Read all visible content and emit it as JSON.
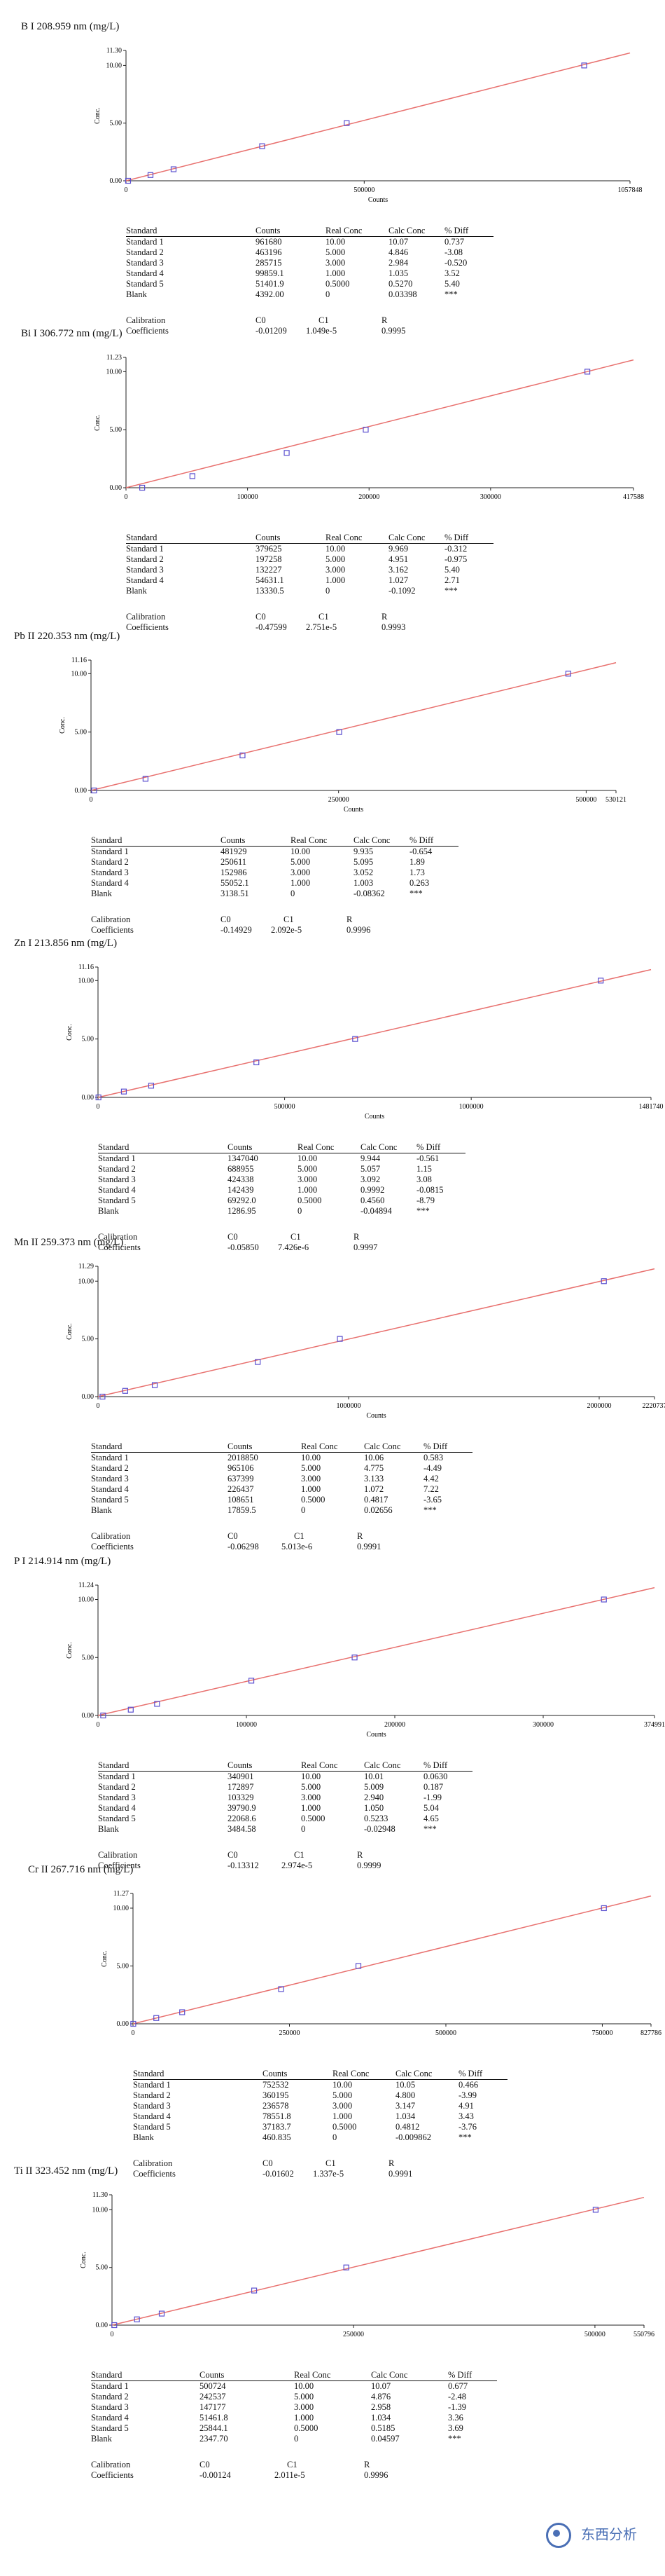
{
  "panels": [
    {
      "title": "B I 208.959 nm (mg/L)",
      "chart_data": {
        "type": "scatter",
        "xlabel": "Counts",
        "ylabel": "Conc.",
        "xlim": [
          0,
          1057848
        ],
        "ylim": [
          0,
          11.3
        ],
        "x_ticks": [
          "0",
          "500000",
          "1057848"
        ],
        "y_ticks": [
          "0.00",
          "5.00",
          "10.00",
          "11.30"
        ],
        "points": [
          [
            961680,
            10.0
          ],
          [
            463196,
            5.0
          ],
          [
            285715,
            3.0
          ],
          [
            99859.1,
            1.0
          ],
          [
            51401.9,
            0.5
          ],
          [
            4392.0,
            0
          ]
        ],
        "line": {
          "c0": -0.01209,
          "c1": 1.049e-05
        }
      },
      "table": {
        "headers": [
          "Standard",
          "Counts",
          "Real Conc",
          "Calc Conc",
          "% Diff"
        ],
        "rows": [
          [
            "Standard 1",
            "961680",
            "10.00",
            "10.07",
            "0.737"
          ],
          [
            "Standard 2",
            "463196",
            "5.000",
            "4.846",
            "-3.08"
          ],
          [
            "Standard 3",
            "285715",
            "3.000",
            "2.984",
            "-0.520"
          ],
          [
            "Standard 4",
            "99859.1",
            "1.000",
            "1.035",
            "3.52"
          ],
          [
            "Standard 5",
            "51401.9",
            "0.5000",
            "0.5270",
            "5.40"
          ],
          [
            "Blank",
            "4392.00",
            "0",
            "0.03398",
            "***"
          ]
        ]
      },
      "calibration": {
        "label1": "Calibration",
        "label2": "Coefficients",
        "h0": "C0",
        "h1": "C1",
        "h2": "R",
        "c0": "-0.01209",
        "c1": "1.049e-5",
        "r": "0.9995"
      }
    },
    {
      "title": "Bi I 306.772 nm (mg/L)",
      "chart_data": {
        "type": "scatter",
        "xlabel": "",
        "ylabel": "Conc.",
        "xlim": [
          0,
          417588
        ],
        "ylim": [
          0,
          11.23
        ],
        "x_ticks": [
          "0",
          "100000",
          "200000",
          "300000",
          "417588"
        ],
        "y_ticks": [
          "0.00",
          "5.00",
          "10.00",
          "11.23"
        ],
        "points": [
          [
            379625,
            10.0
          ],
          [
            197258,
            5.0
          ],
          [
            132227,
            3.0
          ],
          [
            54631.1,
            1.0
          ],
          [
            13330.5,
            0
          ]
        ],
        "line": {
          "c0": -0.47599,
          "c1": 2.751e-05
        }
      },
      "table": {
        "headers": [
          "Standard",
          "Counts",
          "Real Conc",
          "Calc Conc",
          "% Diff"
        ],
        "rows": [
          [
            "Standard 1",
            "379625",
            "10.00",
            "9.969",
            "-0.312"
          ],
          [
            "Standard 2",
            "197258",
            "5.000",
            "4.951",
            "-0.975"
          ],
          [
            "Standard 3",
            "132227",
            "3.000",
            "3.162",
            "5.40"
          ],
          [
            "Standard 4",
            "54631.1",
            "1.000",
            "1.027",
            "2.71"
          ],
          [
            "Blank",
            "13330.5",
            "0",
            "-0.1092",
            "***"
          ]
        ]
      },
      "calibration": {
        "label1": "Calibration",
        "label2": "Coefficients",
        "h0": "C0",
        "h1": "C1",
        "h2": "R",
        "c0": "-0.47599",
        "c1": "2.751e-5",
        "r": "0.9993"
      }
    },
    {
      "title": "Pb II 220.353 nm (mg/L)",
      "chart_data": {
        "type": "scatter",
        "xlabel": "Counts",
        "ylabel": "Conc.",
        "xlim": [
          0,
          530121
        ],
        "ylim": [
          0,
          11.16
        ],
        "x_ticks": [
          "0",
          "250000",
          "500000",
          "530121"
        ],
        "y_ticks": [
          "0.00",
          "5.00",
          "10.00",
          "11.16"
        ],
        "points": [
          [
            481929,
            10.0
          ],
          [
            250611,
            5.0
          ],
          [
            152986,
            3.0
          ],
          [
            55052.1,
            1.0
          ],
          [
            3138.51,
            0
          ]
        ],
        "line": {
          "c0": -0.14929,
          "c1": 2.092e-05
        }
      },
      "table": {
        "headers": [
          "Standard",
          "Counts",
          "Real Conc",
          "Calc Conc",
          "% Diff"
        ],
        "rows": [
          [
            "Standard 1",
            "481929",
            "10.00",
            "9.935",
            "-0.654"
          ],
          [
            "Standard 2",
            "250611",
            "5.000",
            "5.095",
            "1.89"
          ],
          [
            "Standard 3",
            "152986",
            "3.000",
            "3.052",
            "1.73"
          ],
          [
            "Standard 4",
            "55052.1",
            "1.000",
            "1.003",
            "0.263"
          ],
          [
            "Blank",
            "3138.51",
            "0",
            "-0.08362",
            "***"
          ]
        ]
      },
      "calibration": {
        "label1": "Calibration",
        "label2": "Coefficients",
        "h0": "C0",
        "h1": "C1",
        "h2": "R",
        "c0": "-0.14929",
        "c1": "2.092e-5",
        "r": "0.9996"
      }
    },
    {
      "title": "Zn I 213.856 nm (mg/L)",
      "chart_data": {
        "type": "scatter",
        "xlabel": "Counts",
        "ylabel": "Conc.",
        "xlim": [
          0,
          1481740
        ],
        "ylim": [
          0,
          11.16
        ],
        "x_ticks": [
          "0",
          "500000",
          "1000000",
          "1481740"
        ],
        "y_ticks": [
          "0.00",
          "5.00",
          "10.00",
          "11.16"
        ],
        "points": [
          [
            1347040,
            10.0
          ],
          [
            688955,
            5.0
          ],
          [
            424338,
            3.0
          ],
          [
            142439,
            1.0
          ],
          [
            69292.0,
            0.5
          ],
          [
            1286.95,
            0
          ]
        ],
        "line": {
          "c0": -0.0585,
          "c1": 7.426e-06
        }
      },
      "table": {
        "headers": [
          "Standard",
          "Counts",
          "Real Conc",
          "Calc Conc",
          "% Diff"
        ],
        "rows": [
          [
            "Standard 1",
            "1347040",
            "10.00",
            "9.944",
            "-0.561"
          ],
          [
            "Standard 2",
            "688955",
            "5.000",
            "5.057",
            "1.15"
          ],
          [
            "Standard 3",
            "424338",
            "3.000",
            "3.092",
            "3.08"
          ],
          [
            "Standard 4",
            "142439",
            "1.000",
            "0.9992",
            "-0.0815"
          ],
          [
            "Standard 5",
            "69292.0",
            "0.5000",
            "0.4560",
            "-8.79"
          ],
          [
            "Blank",
            "1286.95",
            "0",
            "-0.04894",
            "***"
          ]
        ]
      },
      "calibration": {
        "label1": "Calibration",
        "label2": "Coefficients",
        "h0": "C0",
        "h1": "C1",
        "h2": "R",
        "c0": "-0.05850",
        "c1": "7.426e-6",
        "r": "0.9997"
      }
    },
    {
      "title": "Mn II 259.373 nm (mg/L)",
      "chart_data": {
        "type": "scatter",
        "xlabel": "Counts",
        "ylabel": "Conc.",
        "xlim": [
          0,
          2220737
        ],
        "ylim": [
          0,
          11.29
        ],
        "x_ticks": [
          "0",
          "1000000",
          "2000000",
          "2220737"
        ],
        "y_ticks": [
          "0.00",
          "5.00",
          "10.00",
          "11.29"
        ],
        "points": [
          [
            2018850,
            10.0
          ],
          [
            965106,
            5.0
          ],
          [
            637399,
            3.0
          ],
          [
            226437,
            1.0
          ],
          [
            108651,
            0.5
          ],
          [
            17859.5,
            0
          ]
        ],
        "line": {
          "c0": -0.06298,
          "c1": 5.013e-06
        }
      },
      "table": {
        "headers": [
          "Standard",
          "Counts",
          "Real Conc",
          "Calc Conc",
          "% Diff"
        ],
        "rows": [
          [
            "Standard 1",
            "2018850",
            "10.00",
            "10.06",
            "0.583"
          ],
          [
            "Standard 2",
            "965106",
            "5.000",
            "4.775",
            "-4.49"
          ],
          [
            "Standard 3",
            "637399",
            "3.000",
            "3.133",
            "4.42"
          ],
          [
            "Standard 4",
            "226437",
            "1.000",
            "1.072",
            "7.22"
          ],
          [
            "Standard 5",
            "108651",
            "0.5000",
            "0.4817",
            "-3.65"
          ],
          [
            "Blank",
            "17859.5",
            "0",
            "0.02656",
            "***"
          ]
        ]
      },
      "calibration": {
        "label1": "Calibration",
        "label2": "Coefficients",
        "h0": "C0",
        "h1": "C1",
        "h2": "R",
        "c0": "-0.06298",
        "c1": "5.013e-6",
        "r": "0.9991"
      }
    },
    {
      "title": "P I 214.914 nm (mg/L)",
      "chart_data": {
        "type": "scatter",
        "xlabel": "Counts",
        "ylabel": "Conc.",
        "xlim": [
          0,
          374991
        ],
        "ylim": [
          0,
          11.24
        ],
        "x_ticks": [
          "0",
          "100000",
          "200000",
          "300000",
          "374991"
        ],
        "y_ticks": [
          "0.00",
          "5.00",
          "10.00",
          "11.24"
        ],
        "points": [
          [
            340901,
            10.0
          ],
          [
            172897,
            5.0
          ],
          [
            103329,
            3.0
          ],
          [
            39790.9,
            1.0
          ],
          [
            22068.6,
            0.5
          ],
          [
            3484.58,
            0
          ]
        ],
        "line": {
          "c0": -0.13312,
          "c1": 2.974e-05
        }
      },
      "table": {
        "headers": [
          "Standard",
          "Counts",
          "Real Conc",
          "Calc Conc",
          "% Diff"
        ],
        "rows": [
          [
            "Standard 1",
            "340901",
            "10.00",
            "10.01",
            "0.0630"
          ],
          [
            "Standard 2",
            "172897",
            "5.000",
            "5.009",
            "0.187"
          ],
          [
            "Standard 3",
            "103329",
            "3.000",
            "2.940",
            "-1.99"
          ],
          [
            "Standard 4",
            "39790.9",
            "1.000",
            "1.050",
            "5.04"
          ],
          [
            "Standard 5",
            "22068.6",
            "0.5000",
            "0.5233",
            "4.65"
          ],
          [
            "Blank",
            "3484.58",
            "0",
            "-0.02948",
            "***"
          ]
        ]
      },
      "calibration": {
        "label1": "Calibration",
        "label2": "Coefficients",
        "h0": "C0",
        "h1": "C1",
        "h2": "R",
        "c0": "-0.13312",
        "c1": "2.974e-5",
        "r": "0.9999"
      }
    },
    {
      "title": "Cr II 267.716 nm (mg/L)",
      "chart_data": {
        "type": "scatter",
        "xlabel": "",
        "ylabel": "Conc.",
        "xlim": [
          0,
          827786
        ],
        "ylim": [
          0,
          11.27
        ],
        "x_ticks": [
          "0",
          "250000",
          "500000",
          "750000",
          "827786"
        ],
        "y_ticks": [
          "0.00",
          "5.00",
          "10.00",
          "11.27"
        ],
        "points": [
          [
            752532,
            10.0
          ],
          [
            360195,
            5.0
          ],
          [
            236578,
            3.0
          ],
          [
            78551.8,
            1.0
          ],
          [
            37183.7,
            0.5
          ],
          [
            460.835,
            0
          ]
        ],
        "line": {
          "c0": -0.01602,
          "c1": 1.337e-05
        }
      },
      "table": {
        "headers": [
          "Standard",
          "Counts",
          "Real Conc",
          "Calc Conc",
          "% Diff"
        ],
        "rows": [
          [
            "Standard 1",
            "752532",
            "10.00",
            "10.05",
            "0.466"
          ],
          [
            "Standard 2",
            "360195",
            "5.000",
            "4.800",
            "-3.99"
          ],
          [
            "Standard 3",
            "236578",
            "3.000",
            "3.147",
            "4.91"
          ],
          [
            "Standard 4",
            "78551.8",
            "1.000",
            "1.034",
            "3.43"
          ],
          [
            "Standard 5",
            "37183.7",
            "0.5000",
            "0.4812",
            "-3.76"
          ],
          [
            "Blank",
            "460.835",
            "0",
            "-0.009862",
            "***"
          ]
        ]
      },
      "calibration": {
        "label1": "Calibration",
        "label2": "Coefficients",
        "h0": "C0",
        "h1": "C1",
        "h2": "R",
        "c0": "-0.01602",
        "c1": "1.337e-5",
        "r": "0.9991"
      }
    },
    {
      "title": "Ti II 323.452 nm (mg/L)",
      "chart_data": {
        "type": "scatter",
        "xlabel": "",
        "ylabel": "Conc.",
        "xlim": [
          0,
          550796
        ],
        "ylim": [
          0,
          11.3
        ],
        "x_ticks": [
          "0",
          "250000",
          "500000",
          "550796"
        ],
        "y_ticks": [
          "0.00",
          "5.00",
          "10.00",
          "11.30"
        ],
        "points": [
          [
            500724,
            10.0
          ],
          [
            242537,
            5.0
          ],
          [
            147177,
            3.0
          ],
          [
            51461.8,
            1.0
          ],
          [
            25844.1,
            0.5
          ],
          [
            2347.7,
            0
          ]
        ],
        "line": {
          "c0": -0.00124,
          "c1": 2.011e-05
        }
      },
      "table": {
        "headers": [
          "Standard",
          "Counts",
          "Real Conc",
          "Calc Conc",
          "% Diff"
        ],
        "rows": [
          [
            "Standard 1",
            "500724",
            "10.00",
            "10.07",
            "0.677"
          ],
          [
            "Standard 2",
            "242537",
            "5.000",
            "4.876",
            "-2.48"
          ],
          [
            "Standard 3",
            "147177",
            "3.000",
            "2.958",
            "-1.39"
          ],
          [
            "Standard 4",
            "51461.8",
            "1.000",
            "1.034",
            "3.36"
          ],
          [
            "Standard 5",
            "25844.1",
            "0.5000",
            "0.5185",
            "3.69"
          ],
          [
            "Blank",
            "2347.70",
            "0",
            "0.04597",
            "***"
          ]
        ]
      },
      "calibration": {
        "label1": "Calibration",
        "label2": "Coefficients",
        "h0": "C0",
        "h1": "C1",
        "h2": "R",
        "c0": "-0.00124",
        "c1": "2.011e-5",
        "r": "0.9996"
      }
    }
  ],
  "watermark": {
    "text": "东西分析"
  },
  "colors": {
    "fit_line": "#e8706e",
    "marker": "#5a4fcf",
    "axis": "#222222"
  }
}
